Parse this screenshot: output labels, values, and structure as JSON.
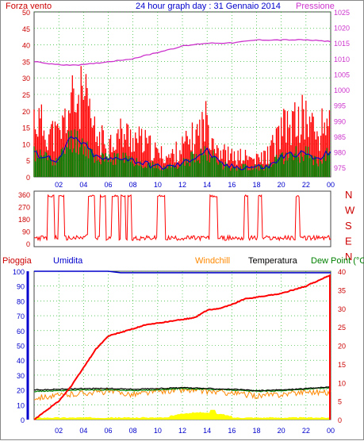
{
  "header": {
    "left_label": "Forza vento",
    "title": "24 hour graph day : 31 Gennaio 2014",
    "right_label": "Pressione"
  },
  "colors": {
    "wind": "#ff0000",
    "wind_avg": "#0000cc",
    "wind_low": "#008000",
    "pressure": "#cc33cc",
    "rain": "#ff0000",
    "humidity": "#0000cc",
    "windchill": "#ff8800",
    "temperature": "#000000",
    "dewpoint": "#008000",
    "rain_rate": "#ffff00",
    "grid": "#00aa00",
    "axis_left_top": "#cc0000",
    "axis_left_bottom": "#0000cc",
    "axis_right_top": "#cc33cc",
    "axis_right_bottom": "#cc0000"
  },
  "chart_data": [
    {
      "type": "line",
      "name": "wind-and-pressure",
      "x_ticks": [
        "02",
        "04",
        "06",
        "08",
        "10",
        "12",
        "14",
        "16",
        "18",
        "20",
        "22",
        "00"
      ],
      "left_ticks": [
        0,
        5,
        10,
        15,
        20,
        25,
        30,
        35,
        40,
        45,
        50
      ],
      "right_ticks": [
        975,
        980,
        985,
        990,
        995,
        1000,
        1005,
        1010,
        1015,
        1020,
        1025
      ],
      "ylim_left": [
        0,
        50
      ],
      "ylim_right": [
        972,
        1025
      ],
      "pressure": {
        "x": [
          0,
          2,
          4,
          6,
          8,
          10,
          12,
          14,
          16,
          18,
          20,
          22,
          24
        ],
        "y": [
          1009,
          1008,
          1008,
          1009,
          1010,
          1012,
          1014,
          1015,
          1015,
          1016,
          1016,
          1016,
          1015.5
        ]
      },
      "wind_gust_profile": {
        "x": [
          0,
          1,
          2,
          3,
          4,
          5,
          6,
          7,
          8,
          9,
          10,
          11,
          12,
          13,
          14,
          15,
          16,
          17,
          18,
          19,
          20,
          21,
          22,
          23,
          24
        ],
        "y": [
          18,
          14,
          12,
          22,
          24,
          12,
          10,
          13,
          12,
          10,
          7,
          6,
          9,
          12,
          17,
          8,
          6,
          6,
          5,
          7,
          14,
          16,
          18,
          12,
          20
        ]
      },
      "wind_avg_profile": {
        "x": [
          0,
          1,
          2,
          3,
          4,
          5,
          6,
          7,
          8,
          9,
          10,
          11,
          12,
          13,
          14,
          15,
          16,
          17,
          18,
          19,
          20,
          21,
          22,
          23,
          24
        ],
        "y": [
          7,
          6,
          5,
          12,
          10,
          6,
          5,
          6,
          5,
          4,
          3,
          3,
          4,
          6,
          8,
          4,
          3,
          3,
          3,
          3,
          6,
          7,
          7,
          5,
          8
        ]
      }
    },
    {
      "type": "line",
      "name": "wind-direction",
      "x_ticks": [
        "02",
        "04",
        "06",
        "08",
        "10",
        "12",
        "14",
        "16",
        "18",
        "20",
        "22",
        "00"
      ],
      "left_ticks": [
        0,
        90,
        180,
        270,
        360
      ],
      "right_labels": [
        "N",
        "W",
        "S",
        "E",
        "N"
      ],
      "ylim": [
        0,
        360
      ]
    },
    {
      "type": "line",
      "name": "rain-humidity-temperature",
      "x_ticks": [
        "02",
        "04",
        "06",
        "08",
        "10",
        "12",
        "14",
        "16",
        "18",
        "20",
        "22",
        "00"
      ],
      "left_ticks": [
        0,
        10,
        20,
        30,
        40,
        50,
        60,
        70,
        80,
        90,
        100
      ],
      "right_ticks": [
        0,
        5,
        10,
        15,
        20,
        25,
        30,
        35,
        40
      ],
      "ylim_left": [
        0,
        100
      ],
      "ylim_right": [
        0,
        40
      ],
      "series": [
        {
          "name": "Pioggia",
          "x": [
            0,
            1,
            2,
            3,
            4,
            5,
            6,
            7,
            8,
            9,
            10,
            11,
            12,
            13,
            14,
            15,
            16,
            17,
            18,
            19,
            20,
            21,
            22,
            23,
            24
          ],
          "y": [
            0,
            2.5,
            5,
            9,
            14,
            19,
            22.5,
            23.5,
            24.5,
            25.5,
            26,
            26.5,
            27,
            27.5,
            29.5,
            30,
            31,
            32.5,
            33,
            33.5,
            34,
            35,
            36,
            37.5,
            39
          ]
        },
        {
          "name": "Umidita",
          "x": [
            0,
            6,
            7,
            24
          ],
          "y": [
            100,
            100,
            99,
            99
          ]
        },
        {
          "name": "Windchill",
          "x": [
            0,
            2,
            4,
            6,
            8,
            10,
            12,
            14,
            16,
            18,
            20,
            22,
            24
          ],
          "y": [
            15,
            16,
            18,
            19,
            17,
            19,
            20,
            19,
            18,
            16,
            17,
            19,
            18
          ]
        },
        {
          "name": "Temperatura",
          "x": [
            0,
            2,
            4,
            6,
            8,
            10,
            12,
            14,
            16,
            18,
            20,
            22,
            24
          ],
          "y": [
            20,
            20.5,
            21,
            21,
            20.5,
            21,
            21.5,
            21,
            20.5,
            19.5,
            20,
            21,
            22
          ]
        },
        {
          "name": "Dew Point",
          "x": [
            0,
            2,
            4,
            6,
            8,
            10,
            12,
            14,
            16,
            18,
            20,
            22,
            24
          ],
          "y": [
            19,
            19.5,
            20,
            20,
            19.5,
            20,
            21,
            20.5,
            20,
            19,
            19.5,
            20.5,
            21.5
          ]
        }
      ]
    }
  ],
  "bottom_header": {
    "rain": "Pioggia",
    "humidity": "Umidita",
    "windchill": "Windchill",
    "temperature": "Temperatura",
    "dewpoint": "Dew Point (°C"
  }
}
